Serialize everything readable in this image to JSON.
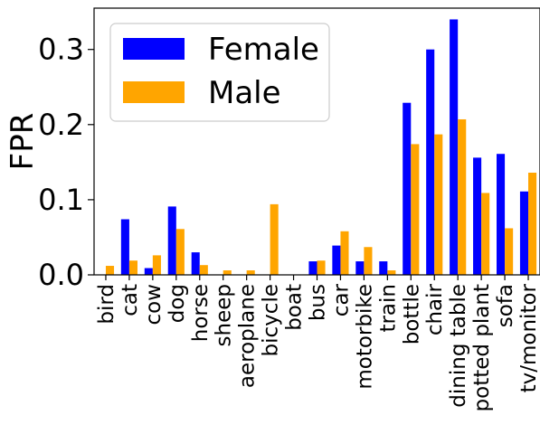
{
  "chart_data": {
    "type": "bar",
    "ylabel": "FPR",
    "xlabel": "",
    "ylim": [
      0,
      0.355
    ],
    "yticks": [
      0.0,
      0.1,
      0.2,
      0.3
    ],
    "ytick_labels": [
      "0.0",
      "0.1",
      "0.2",
      "0.3"
    ],
    "legend_position": "top-left",
    "grid": false,
    "categories": [
      "bird",
      "cat",
      "cow",
      "dog",
      "horse",
      "sheep",
      "aeroplane",
      "bicycle",
      "boat",
      "bus",
      "car",
      "motorbike",
      "train",
      "bottle",
      "chair",
      "dining table",
      "potted plant",
      "sofa",
      "tv/monitor"
    ],
    "series": [
      {
        "name": "Female",
        "color": "#0000ff",
        "values": [
          0.0,
          0.074,
          0.009,
          0.091,
          0.03,
          0.0,
          0.0,
          0.0,
          0.0,
          0.018,
          0.039,
          0.018,
          0.018,
          0.229,
          0.3,
          0.34,
          0.156,
          0.161,
          0.111
        ]
      },
      {
        "name": "Male",
        "color": "#ffa500",
        "values": [
          0.012,
          0.019,
          0.026,
          0.061,
          0.013,
          0.006,
          0.006,
          0.094,
          0.0,
          0.019,
          0.058,
          0.037,
          0.006,
          0.174,
          0.187,
          0.207,
          0.109,
          0.062,
          0.136
        ]
      }
    ]
  }
}
